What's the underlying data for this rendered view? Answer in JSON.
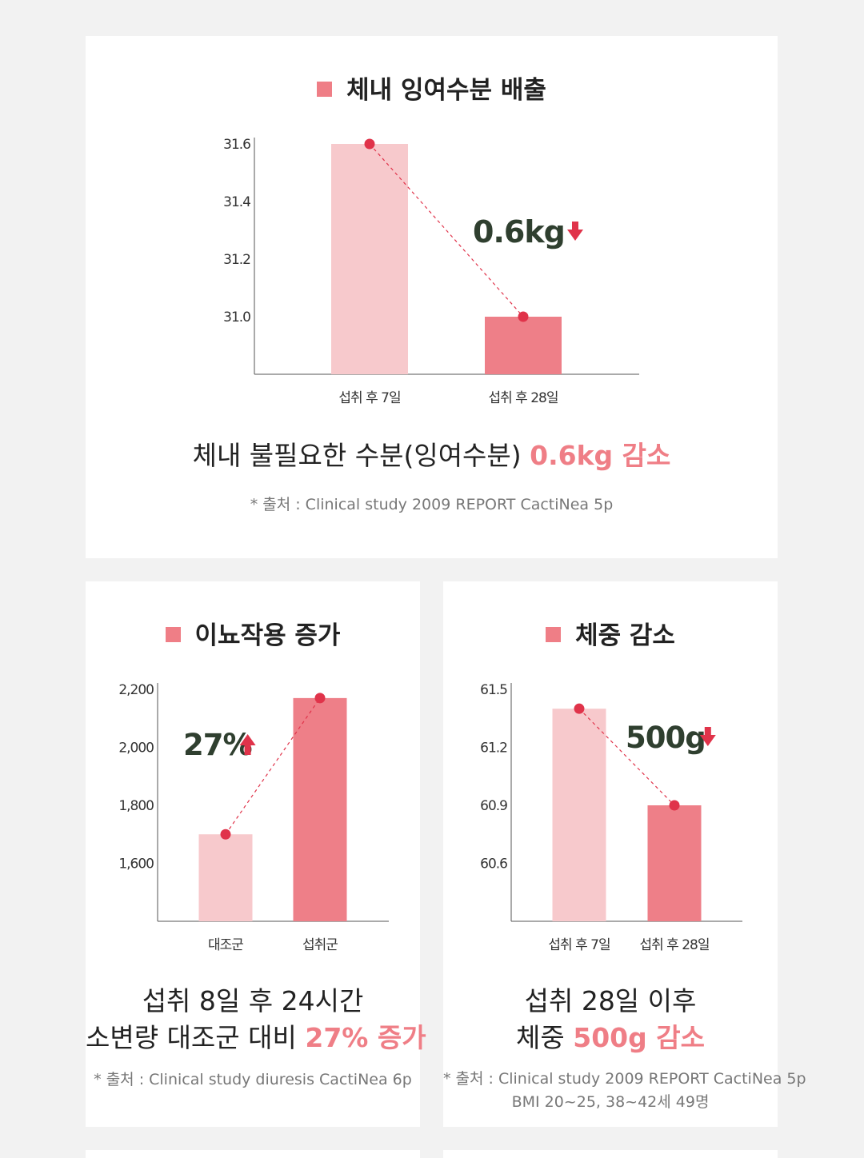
{
  "colors": {
    "accent": "#ef7e86",
    "bar_light": "#f7c9cc",
    "bar_dark": "#ee7f88",
    "marker": "#e0334a",
    "callout": "#2f3f2f"
  },
  "top": {
    "title": "체내 잉여수분 배출",
    "caption_prefix": "체내 불필요한 수분(잉여수분) ",
    "caption_highlight": "0.6kg 감소",
    "source": "* 출처 : Clinical study 2009 REPORT CactiNea 5p",
    "callout": "0.6kg",
    "callout_direction": "down"
  },
  "left": {
    "title": "이뇨작용 증가",
    "caption_line1": "섭취 8일 후 24시간",
    "caption_line2_prefix": "소변량 대조군 대비 ",
    "caption_line2_highlight": "27% 증가",
    "source": "* 출처 : Clinical study diuresis CactiNea 6p",
    "callout": "27%",
    "callout_direction": "up"
  },
  "right": {
    "title": "체중 감소",
    "caption_line1": "섭취 28일 이후",
    "caption_line2_prefix": "체중 ",
    "caption_line2_highlight": "500g 감소",
    "source_line1": "* 출처 : Clinical study 2009 REPORT CactiNea 5p",
    "source_line2": "BMI 20~25, 38~42세 49명",
    "callout": "500g",
    "callout_direction": "down"
  },
  "chart_data": [
    {
      "type": "bar",
      "title": "체내 잉여수분 배출",
      "categories": [
        "섭취 후 7일",
        "섭취 후 28일"
      ],
      "values": [
        31.6,
        31.0
      ],
      "yticks": [
        "31.6",
        "31.4",
        "31.2",
        "31.0"
      ],
      "ytick_values": [
        31.6,
        31.4,
        31.2,
        31.0
      ],
      "ylim": [
        30.8,
        31.6
      ],
      "grid": false,
      "bar_colors": [
        "#f7c9cc",
        "#ee7f88"
      ]
    },
    {
      "type": "bar",
      "title": "이뇨작용 증가",
      "categories": [
        "대조군",
        "섭취군"
      ],
      "values": [
        1700,
        2170
      ],
      "yticks": [
        "2,200",
        "2,000",
        "1,800",
        "1,600"
      ],
      "ytick_values": [
        2200,
        2000,
        1800,
        1600
      ],
      "ylim": [
        1400,
        2200
      ],
      "grid": false,
      "bar_colors": [
        "#f7c9cc",
        "#ee7f88"
      ]
    },
    {
      "type": "bar",
      "title": "체중 감소",
      "categories": [
        "섭취 후 7일",
        "섭취 후 28일"
      ],
      "values": [
        61.4,
        60.9
      ],
      "yticks": [
        "61.5",
        "61.2",
        "60.9",
        "60.6"
      ],
      "ytick_values": [
        61.5,
        61.2,
        60.9,
        60.6
      ],
      "ylim": [
        60.3,
        61.5
      ],
      "grid": false,
      "bar_colors": [
        "#f7c9cc",
        "#ee7f88"
      ]
    }
  ]
}
